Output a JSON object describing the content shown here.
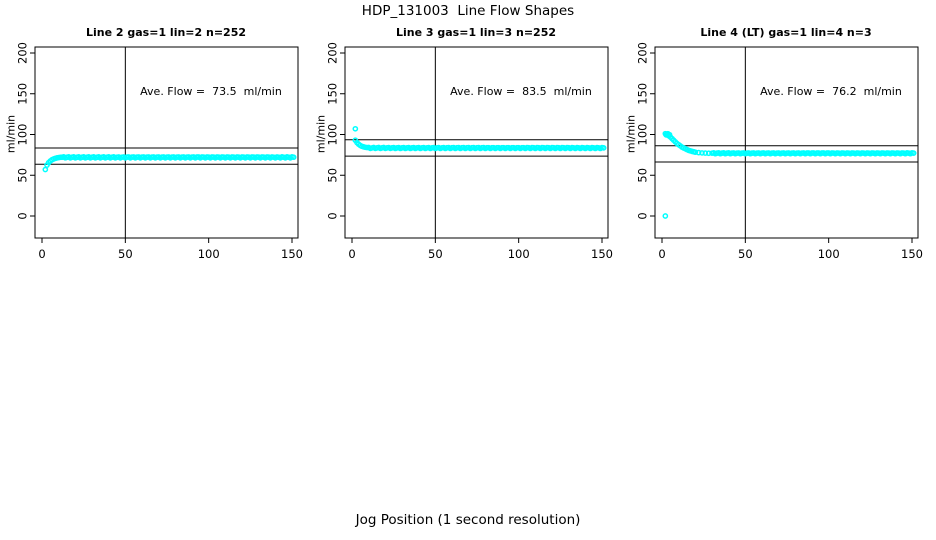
{
  "page": {
    "title": "HDP_131003  Line Flow Shapes",
    "xlabel": "Jog Position (1 second resolution)",
    "background_color": "#ffffff",
    "axis_color": "#000000",
    "point_color": "#00ffff"
  },
  "chart_data": [
    {
      "type": "scatter",
      "title": "Line 2 gas=1 lin=2 n=252",
      "ylabel": "ml/min",
      "annotation": "Ave. Flow =  73.5  ml/min",
      "ave_flow_ml_min": 73.5,
      "xlim": [
        0,
        150
      ],
      "ylim": [
        0,
        200
      ],
      "x_ticks": [
        0,
        50,
        100,
        150
      ],
      "y_ticks": [
        0,
        50,
        100,
        150,
        200
      ],
      "grid": false,
      "vline_x": 50,
      "ref_lines_y": [
        83.5,
        63.5
      ],
      "transient_points": [
        [
          2,
          57
        ],
        [
          3,
          62.5
        ],
        [
          4,
          65.5
        ],
        [
          5,
          67.5
        ],
        [
          6,
          69
        ],
        [
          7,
          70
        ],
        [
          8,
          70.8
        ],
        [
          9,
          71.3
        ],
        [
          10,
          71.7
        ],
        [
          11,
          72
        ]
      ],
      "plateau": {
        "x_from": 12,
        "x_to": 151,
        "step": 1,
        "y": 72,
        "jitter": 1.0
      }
    },
    {
      "type": "scatter",
      "title": "Line 3 gas=1 lin=3 n=252",
      "ylabel": "ml/min",
      "annotation": "Ave. Flow =  83.5  ml/min",
      "ave_flow_ml_min": 83.5,
      "xlim": [
        0,
        150
      ],
      "ylim": [
        0,
        200
      ],
      "x_ticks": [
        0,
        50,
        100,
        150
      ],
      "y_ticks": [
        0,
        50,
        100,
        150,
        200
      ],
      "grid": false,
      "vline_x": 50,
      "ref_lines_y": [
        93.5,
        73.5
      ],
      "transient_points": [
        [
          2,
          107
        ],
        [
          2,
          93
        ],
        [
          3,
          90
        ],
        [
          4,
          88
        ],
        [
          5,
          86.5
        ],
        [
          6,
          85.5
        ],
        [
          7,
          84.8
        ],
        [
          8,
          84.3
        ],
        [
          9,
          84
        ]
      ],
      "plateau": {
        "x_from": 10,
        "x_to": 151,
        "step": 1,
        "y": 83.5,
        "jitter": 0.9
      }
    },
    {
      "type": "scatter",
      "title": "Line 4 (LT) gas=1 lin=4 n=3",
      "ylabel": "ml/min",
      "annotation": "Ave. Flow =  76.2  ml/min",
      "ave_flow_ml_min": 76.2,
      "xlim": [
        0,
        150
      ],
      "ylim": [
        0,
        200
      ],
      "x_ticks": [
        0,
        50,
        100,
        150
      ],
      "y_ticks": [
        0,
        50,
        100,
        150,
        200
      ],
      "grid": false,
      "vline_x": 50,
      "ref_lines_y": [
        86.2,
        66.2
      ],
      "transient_points": [
        [
          2,
          0
        ],
        [
          2,
          101
        ],
        [
          2.5,
          99.5
        ],
        [
          3,
          100
        ],
        [
          3.5,
          101
        ],
        [
          4,
          98.5
        ],
        [
          4.5,
          99.8
        ],
        [
          5,
          97
        ],
        [
          6,
          95
        ],
        [
          7,
          93
        ],
        [
          8,
          91
        ],
        [
          9,
          89
        ],
        [
          10,
          87.5
        ],
        [
          11,
          86
        ],
        [
          12,
          84.5
        ],
        [
          13,
          83.5
        ],
        [
          14,
          82.5
        ],
        [
          15,
          81.5
        ],
        [
          16,
          80.5
        ],
        [
          17,
          80
        ],
        [
          18,
          79.3
        ],
        [
          19,
          78.8
        ],
        [
          20,
          78.3
        ],
        [
          22,
          77.8
        ],
        [
          24,
          77.4
        ],
        [
          26,
          77.2
        ],
        [
          28,
          77
        ]
      ],
      "plateau": {
        "x_from": 30,
        "x_to": 151,
        "step": 1,
        "y": 77,
        "jitter": 0.8
      }
    }
  ]
}
